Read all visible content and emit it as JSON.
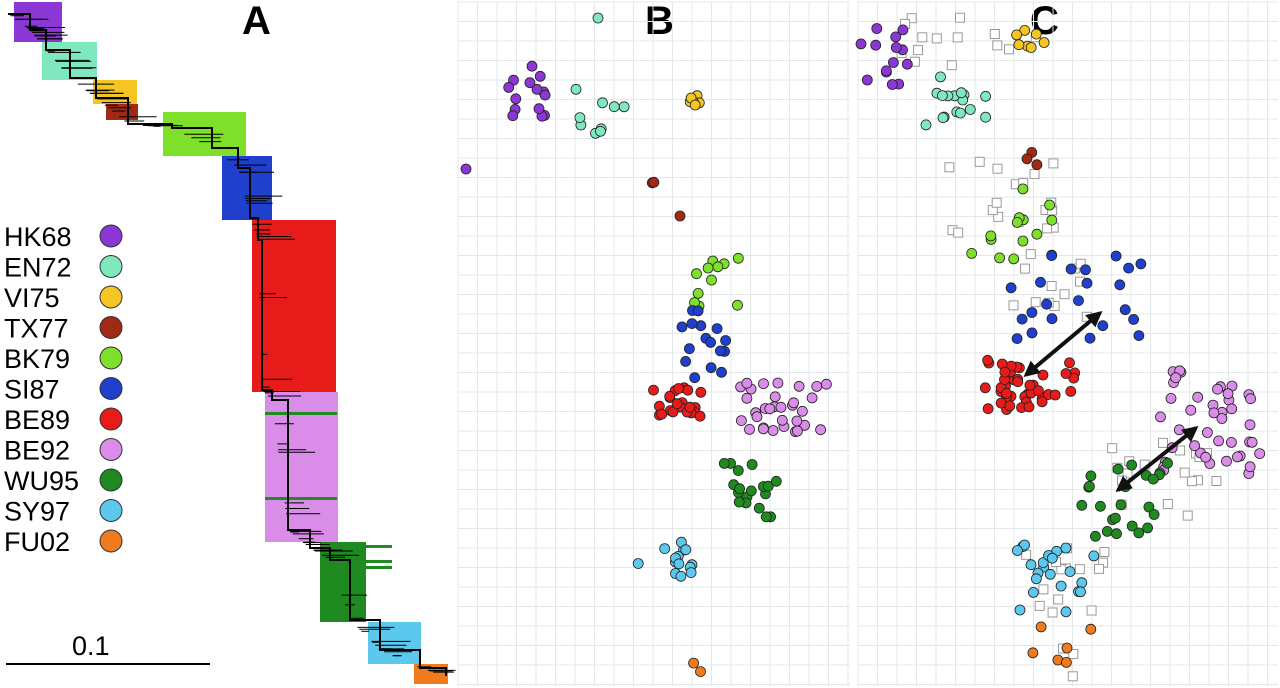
{
  "panels": {
    "a": "A",
    "b": "B",
    "c": "C"
  },
  "scale_bar_label": "0.1",
  "legend": [
    {
      "name": "HK68",
      "color": "#8b37d4"
    },
    {
      "name": "EN72",
      "color": "#7fe8bf"
    },
    {
      "name": "VI75",
      "color": "#f4c523"
    },
    {
      "name": "TX77",
      "color": "#a02a14"
    },
    {
      "name": "BK79",
      "color": "#7ee02b"
    },
    {
      "name": "SI87",
      "color": "#1f3fcc"
    },
    {
      "name": "BE89",
      "color": "#e81b1b"
    },
    {
      "name": "BE92",
      "color": "#d98de8"
    },
    {
      "name": "WU95",
      "color": "#1f8a1f"
    },
    {
      "name": "SY97",
      "color": "#5cc8ee"
    },
    {
      "name": "FU02",
      "color": "#f07a1e"
    }
  ],
  "reference_marker": {
    "shape": "open-square",
    "color": "#9a9a9a"
  }
}
